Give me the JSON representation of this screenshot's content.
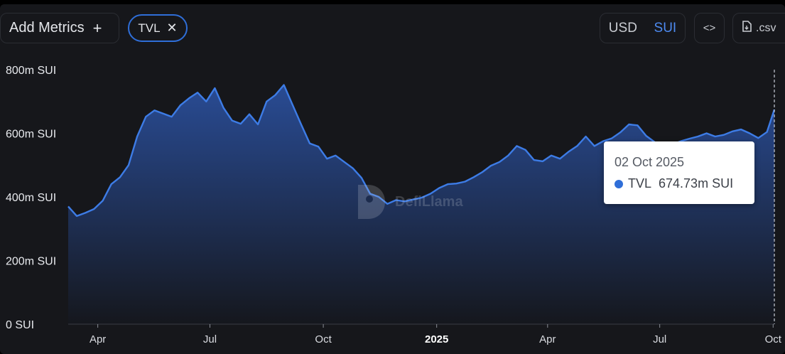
{
  "toolbar": {
    "add_metrics_label": "Add Metrics",
    "add_metrics_icon": "plus-icon",
    "active_metric": "TVL",
    "remove_icon": "close-icon",
    "currency_options": [
      "USD",
      "SUI"
    ],
    "selected_currency": "SUI",
    "embed_icon": "code-brackets-icon",
    "csv_label": ".csv",
    "csv_icon": "file-download-icon"
  },
  "tooltip": {
    "date": "02 Oct 2025",
    "series": "TVL",
    "value": "674.73m SUI"
  },
  "watermark": "DefiLlama",
  "colors": {
    "line": "#3d7ce6",
    "fill_top": "#2a4e9a",
    "fill_bottom": "#15171d",
    "accent": "#2f6ed8"
  },
  "chart_data": {
    "type": "area",
    "x_start": "2024-03-08",
    "x_end": "2025-10-02",
    "ylim": [
      0,
      800
    ],
    "yticks": [
      0,
      200,
      400,
      600,
      800
    ],
    "ytick_labels": [
      "0 SUI",
      "200m SUI",
      "400m SUI",
      "600m SUI",
      "800m SUI"
    ],
    "xtick_labels": [
      "Apr",
      "Jul",
      "Oct",
      "2025",
      "Apr",
      "Jul",
      "Oct"
    ],
    "xtick_dates": [
      "2024-04-01",
      "2024-07-01",
      "2024-10-01",
      "2025-01-01",
      "2025-04-01",
      "2025-07-01",
      "2025-10-01"
    ],
    "grid": false,
    "series": [
      {
        "name": "TVL",
        "x": [
          "2024-03-08",
          "2024-03-15",
          "2024-03-22",
          "2024-03-29",
          "2024-04-05",
          "2024-04-12",
          "2024-04-19",
          "2024-04-26",
          "2024-05-03",
          "2024-05-10",
          "2024-05-17",
          "2024-05-24",
          "2024-05-31",
          "2024-06-07",
          "2024-06-14",
          "2024-06-21",
          "2024-06-28",
          "2024-07-05",
          "2024-07-12",
          "2024-07-19",
          "2024-07-26",
          "2024-08-02",
          "2024-08-09",
          "2024-08-16",
          "2024-08-23",
          "2024-08-30",
          "2024-09-06",
          "2024-09-13",
          "2024-09-20",
          "2024-09-27",
          "2024-10-04",
          "2024-10-11",
          "2024-10-18",
          "2024-10-25",
          "2024-11-01",
          "2024-11-08",
          "2024-11-15",
          "2024-11-22",
          "2024-11-29",
          "2024-12-06",
          "2024-12-13",
          "2024-12-20",
          "2024-12-27",
          "2025-01-03",
          "2025-01-10",
          "2025-01-17",
          "2025-01-24",
          "2025-01-31",
          "2025-02-07",
          "2025-02-14",
          "2025-02-21",
          "2025-02-28",
          "2025-03-07",
          "2025-03-14",
          "2025-03-21",
          "2025-03-28",
          "2025-04-04",
          "2025-04-11",
          "2025-04-18",
          "2025-04-25",
          "2025-05-02",
          "2025-05-09",
          "2025-05-16",
          "2025-05-23",
          "2025-05-30",
          "2025-06-06",
          "2025-06-13",
          "2025-06-20",
          "2025-06-27",
          "2025-07-04",
          "2025-07-11",
          "2025-07-18",
          "2025-07-25",
          "2025-08-01",
          "2025-08-08",
          "2025-08-15",
          "2025-08-22",
          "2025-08-29",
          "2025-09-05",
          "2025-09-12",
          "2025-09-19",
          "2025-09-26",
          "2025-10-02"
        ],
        "values": [
          370,
          340,
          350,
          362,
          388,
          440,
          462,
          500,
          590,
          652,
          672,
          662,
          652,
          688,
          710,
          728,
          700,
          742,
          680,
          640,
          630,
          660,
          628,
          700,
          720,
          752,
          690,
          628,
          568,
          558,
          520,
          530,
          510,
          490,
          460,
          410,
          400,
          378,
          390,
          386,
          392,
          398,
          410,
          428,
          440,
          442,
          448,
          462,
          478,
          498,
          510,
          530,
          560,
          548,
          516,
          512,
          530,
          520,
          542,
          560,
          590,
          560,
          575,
          584,
          603,
          628,
          625,
          592,
          572,
          560,
          565,
          575,
          583,
          590,
          600,
          590,
          595,
          606,
          612,
          600,
          585,
          604,
          674.73
        ]
      }
    ]
  }
}
